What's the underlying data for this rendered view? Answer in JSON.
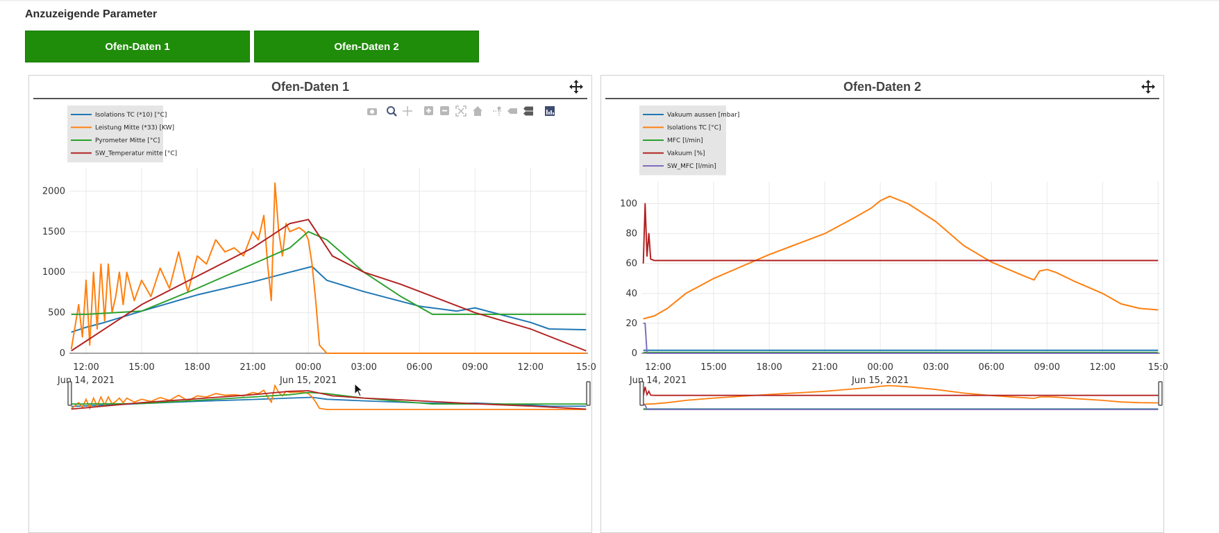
{
  "header": {
    "title": "Anzuzeigende Parameter"
  },
  "tabs": [
    {
      "label": "Ofen-Daten 1"
    },
    {
      "label": "Ofen-Daten 2"
    }
  ],
  "colors": {
    "tab_green": "#1f8c0a",
    "blue": "#1f77b4",
    "orange": "#ff7f0e",
    "green": "#2ca02c",
    "red": "#b22222",
    "purple": "#7f6bbd"
  },
  "panels": [
    {
      "title": "Ofen-Daten 1"
    },
    {
      "title": "Ofen-Daten 2"
    }
  ],
  "modebar_icons": [
    "camera-icon",
    "zoom-icon",
    "pan-icon",
    "zoom-in-icon",
    "zoom-out-icon",
    "autoscale-icon",
    "home-icon",
    "spike-lines-icon",
    "hover-closest-icon",
    "hover-compare-icon",
    "plotly-logo-icon"
  ],
  "chart_data": [
    {
      "type": "line",
      "title": "Ofen-Daten 1",
      "x_unit": "hours since 2021-06-14 00:00",
      "x_ticks": [
        "12:00",
        "15:00",
        "18:00",
        "21:00",
        "00:00",
        "03:00",
        "06:00",
        "09:00",
        "12:00",
        "15:0"
      ],
      "x_tick_values": [
        12,
        15,
        18,
        21,
        24,
        27,
        30,
        33,
        36,
        39
      ],
      "x_date_labels": [
        {
          "at": 12,
          "text": "Jun 14, 2021"
        },
        {
          "at": 24,
          "text": "Jun 15, 2021"
        }
      ],
      "xlim": [
        11.1,
        39.1
      ],
      "ylim": [
        0,
        2200
      ],
      "y_ticks": [
        0,
        500,
        1000,
        1500,
        2000
      ],
      "grid": true,
      "legend_position": "top-left",
      "series": [
        {
          "name": "Isolations TC (*10) [°C]",
          "color": "#1f77b4",
          "x": [
            11.2,
            12,
            13,
            15,
            18,
            21,
            23,
            24.2,
            25,
            27,
            30,
            32,
            33,
            34,
            36,
            37,
            39
          ],
          "y": [
            260,
            320,
            380,
            520,
            720,
            880,
            1000,
            1070,
            900,
            760,
            580,
            520,
            560,
            500,
            380,
            300,
            290
          ]
        },
        {
          "name": "Leistung Mitte (*33) [KW]",
          "color": "#ff7f0e",
          "x": [
            11.2,
            11.6,
            11.8,
            12,
            12.2,
            12.4,
            12.6,
            12.8,
            13,
            13.2,
            13.4,
            13.6,
            13.8,
            14,
            14.2,
            14.6,
            15,
            15.5,
            16,
            16.5,
            17,
            17.5,
            18,
            18.5,
            19,
            19.5,
            20,
            20.5,
            21,
            21.3,
            21.6,
            21.8,
            22,
            22.2,
            22.4,
            22.6,
            22.8,
            23,
            23.5,
            23.8,
            24,
            24.2,
            24.4,
            24.6,
            25,
            27,
            30,
            33,
            36,
            39
          ],
          "y": [
            50,
            600,
            200,
            900,
            100,
            1000,
            300,
            1100,
            400,
            1100,
            500,
            700,
            1000,
            600,
            1000,
            650,
            900,
            700,
            1050,
            800,
            1250,
            750,
            1200,
            1100,
            1400,
            1250,
            1300,
            1200,
            1500,
            1400,
            1700,
            1100,
            650,
            2100,
            1500,
            1200,
            1600,
            1500,
            1550,
            1500,
            1400,
            1100,
            650,
            100,
            0,
            0,
            0,
            0,
            0,
            0
          ]
        },
        {
          "name": "Pyrometer Mitte [°C]",
          "color": "#2ca02c",
          "x": [
            11.2,
            12,
            15,
            18,
            21,
            23,
            24,
            25,
            27,
            29,
            30.7,
            33,
            36,
            39
          ],
          "y": [
            480,
            480,
            520,
            800,
            1100,
            1300,
            1500,
            1400,
            1000,
            700,
            480,
            480,
            480,
            480
          ]
        },
        {
          "name": "SW_Temperatur mitte [°C]",
          "color": "#b22222",
          "x": [
            11.2,
            15,
            18,
            21,
            23,
            24,
            25.3,
            27,
            29,
            33,
            36,
            39
          ],
          "y": [
            30,
            600,
            950,
            1300,
            1600,
            1650,
            1200,
            1000,
            850,
            500,
            300,
            30
          ]
        }
      ]
    },
    {
      "type": "line",
      "title": "Ofen-Daten 2",
      "x_unit": "hours since 2021-06-14 00:00",
      "x_ticks": [
        "12:00",
        "15:00",
        "18:00",
        "21:00",
        "00:00",
        "03:00",
        "06:00",
        "09:00",
        "12:00",
        "15:0"
      ],
      "x_tick_values": [
        12,
        15,
        18,
        21,
        24,
        27,
        30,
        33,
        36,
        39
      ],
      "x_date_labels": [
        {
          "at": 12,
          "text": "Jun 14, 2021"
        },
        {
          "at": 24,
          "text": "Jun 15, 2021"
        }
      ],
      "xlim": [
        11.1,
        39.1
      ],
      "ylim": [
        0,
        110
      ],
      "y_ticks": [
        0,
        20,
        40,
        60,
        80,
        100
      ],
      "grid": true,
      "legend_position": "top-left",
      "series": [
        {
          "name": "Vakuum aussen [mbar]",
          "color": "#1f77b4",
          "x": [
            11.2,
            39
          ],
          "y": [
            2,
            2
          ]
        },
        {
          "name": "Isolations TC [°C]",
          "color": "#ff7f0e",
          "x": [
            11.2,
            11.8,
            12.5,
            13.5,
            15,
            16.5,
            18,
            19.5,
            21,
            22.5,
            23.5,
            24,
            24.5,
            25.5,
            27,
            28.5,
            30,
            31.5,
            32.3,
            32.6,
            33,
            33.5,
            34.5,
            36,
            37,
            38,
            39
          ],
          "y": [
            23,
            25,
            30,
            40,
            50,
            58,
            66,
            73,
            80,
            90,
            97,
            102,
            105,
            100,
            88,
            72,
            61,
            53,
            49,
            55,
            56,
            54,
            48,
            40,
            33,
            30,
            29
          ]
        },
        {
          "name": "MFC [l/min]",
          "color": "#2ca02c",
          "x": [
            11.2,
            39
          ],
          "y": [
            0.5,
            0.5
          ]
        },
        {
          "name": "Vakuum [%]",
          "color": "#b22222",
          "x": [
            11.2,
            11.3,
            11.4,
            11.5,
            11.6,
            11.8,
            39
          ],
          "y": [
            60,
            100,
            65,
            80,
            63,
            62,
            62
          ]
        },
        {
          "name": "SW_MFC [l/min]",
          "color": "#7f6bbd",
          "x": [
            11.2,
            11.3,
            11.4,
            39
          ],
          "y": [
            20,
            20,
            0,
            0
          ]
        }
      ]
    }
  ]
}
